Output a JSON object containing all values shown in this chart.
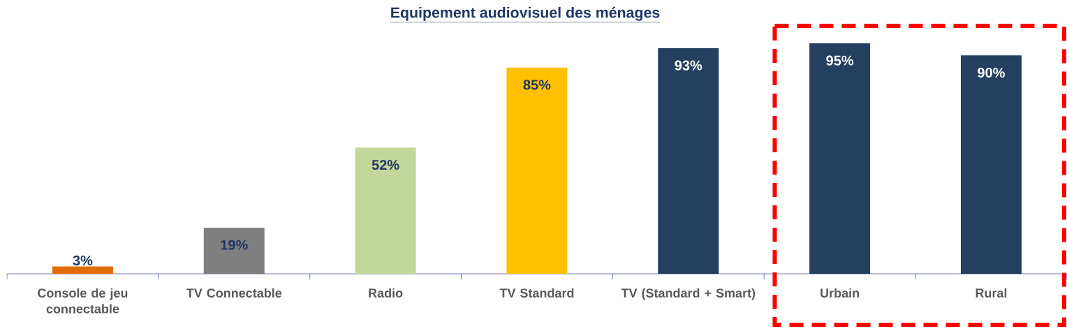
{
  "chart_data": {
    "type": "bar",
    "title": "Equipement audiovisuel des ménages",
    "categories": [
      "Console de jeu connectable",
      "TV Connectable",
      "Radio",
      "TV Standard",
      "TV (Standard + Smart)",
      "Urbain",
      "Rural"
    ],
    "values": [
      3,
      19,
      52,
      85,
      93,
      95,
      90
    ],
    "colors": [
      "#e36c0a",
      "#7f7f7f",
      "#c4d79b",
      "#ffc000",
      "#243f60",
      "#243f60",
      "#243f60"
    ],
    "data_labels": true,
    "value_labels": [
      "3%",
      "19%",
      "52%",
      "85%",
      "93%",
      "95%",
      "90%"
    ]
  }
}
